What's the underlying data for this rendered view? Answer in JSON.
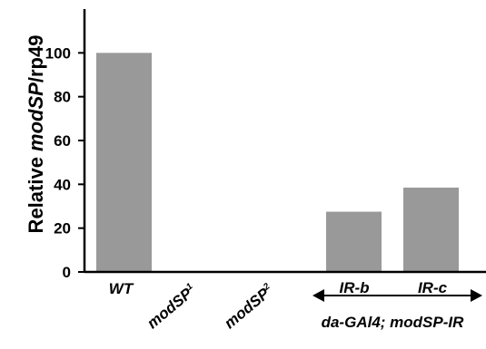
{
  "chart_data": {
    "type": "bar",
    "categories": [
      "WT",
      "modSP1",
      "modSP2",
      "IR-b",
      "IR-c"
    ],
    "category_labels": [
      {
        "base": "WT",
        "sup": ""
      },
      {
        "base": "modSP",
        "sup": "1"
      },
      {
        "base": "modSP",
        "sup": "2"
      },
      {
        "base": "IR-b",
        "sup": ""
      },
      {
        "base": "IR-c",
        "sup": ""
      }
    ],
    "values": [
      100,
      0,
      0,
      27.5,
      38.5
    ],
    "ylabel": {
      "prefix": "Relative ",
      "gene": "modSP",
      "suffix": "/rp49"
    },
    "ylim": [
      0,
      120
    ],
    "yticks": [
      0,
      20,
      40,
      60,
      80,
      100
    ],
    "group_label": "da-GAl4; modSP-IR",
    "bar_color": "#999999",
    "grid": false
  }
}
